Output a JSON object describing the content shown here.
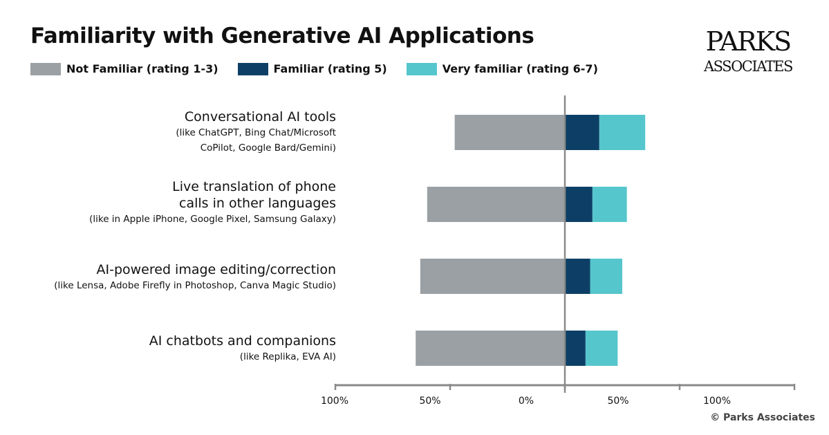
{
  "chart_data": {
    "type": "bar",
    "orientation": "horizontal-diverging",
    "title": "Familiarity with Generative AI Applications",
    "categories": [
      {
        "title": [
          "Conversational AI tools"
        ],
        "subtitle": [
          "(like ChatGPT, Bing Chat/Microsoft",
          "CoPilot, Google Bard/Gemini)"
        ]
      },
      {
        "title": [
          "Live translation of phone",
          "calls in other languages"
        ],
        "subtitle": [
          "(like in Apple iPhone, Google Pixel, Samsung Galaxy)"
        ]
      },
      {
        "title": [
          "AI-powered image editing/correction"
        ],
        "subtitle": [
          "(like Lensa, Adobe Firefly in Photoshop, Canva Magic Studio)"
        ]
      },
      {
        "title": [
          "AI chatbots and companions"
        ],
        "subtitle": [
          "(like Replika, EVA AI)"
        ]
      }
    ],
    "series": [
      {
        "name": "Not Familiar (rating 1-3)",
        "color": "#9aa0a3",
        "side": "left",
        "values": [
          48,
          60,
          63,
          65
        ]
      },
      {
        "name": "Familiar (rating 5)",
        "color": "#0d3f66",
        "side": "right",
        "values": [
          15,
          12,
          11,
          9
        ]
      },
      {
        "name": "Very familiar (rating 6-7)",
        "color": "#55c6cc",
        "side": "right",
        "values": [
          20,
          15,
          14,
          14
        ]
      }
    ],
    "xlim": [
      -100,
      100
    ],
    "tick_labels": [
      "100%",
      "50%",
      "0%",
      "50%",
      "100%"
    ],
    "legend": "top-left",
    "grid": false
  },
  "logo": {
    "line1": "PARKS",
    "line2": "ASSOCIATES"
  },
  "credit": "© Parks Associates"
}
